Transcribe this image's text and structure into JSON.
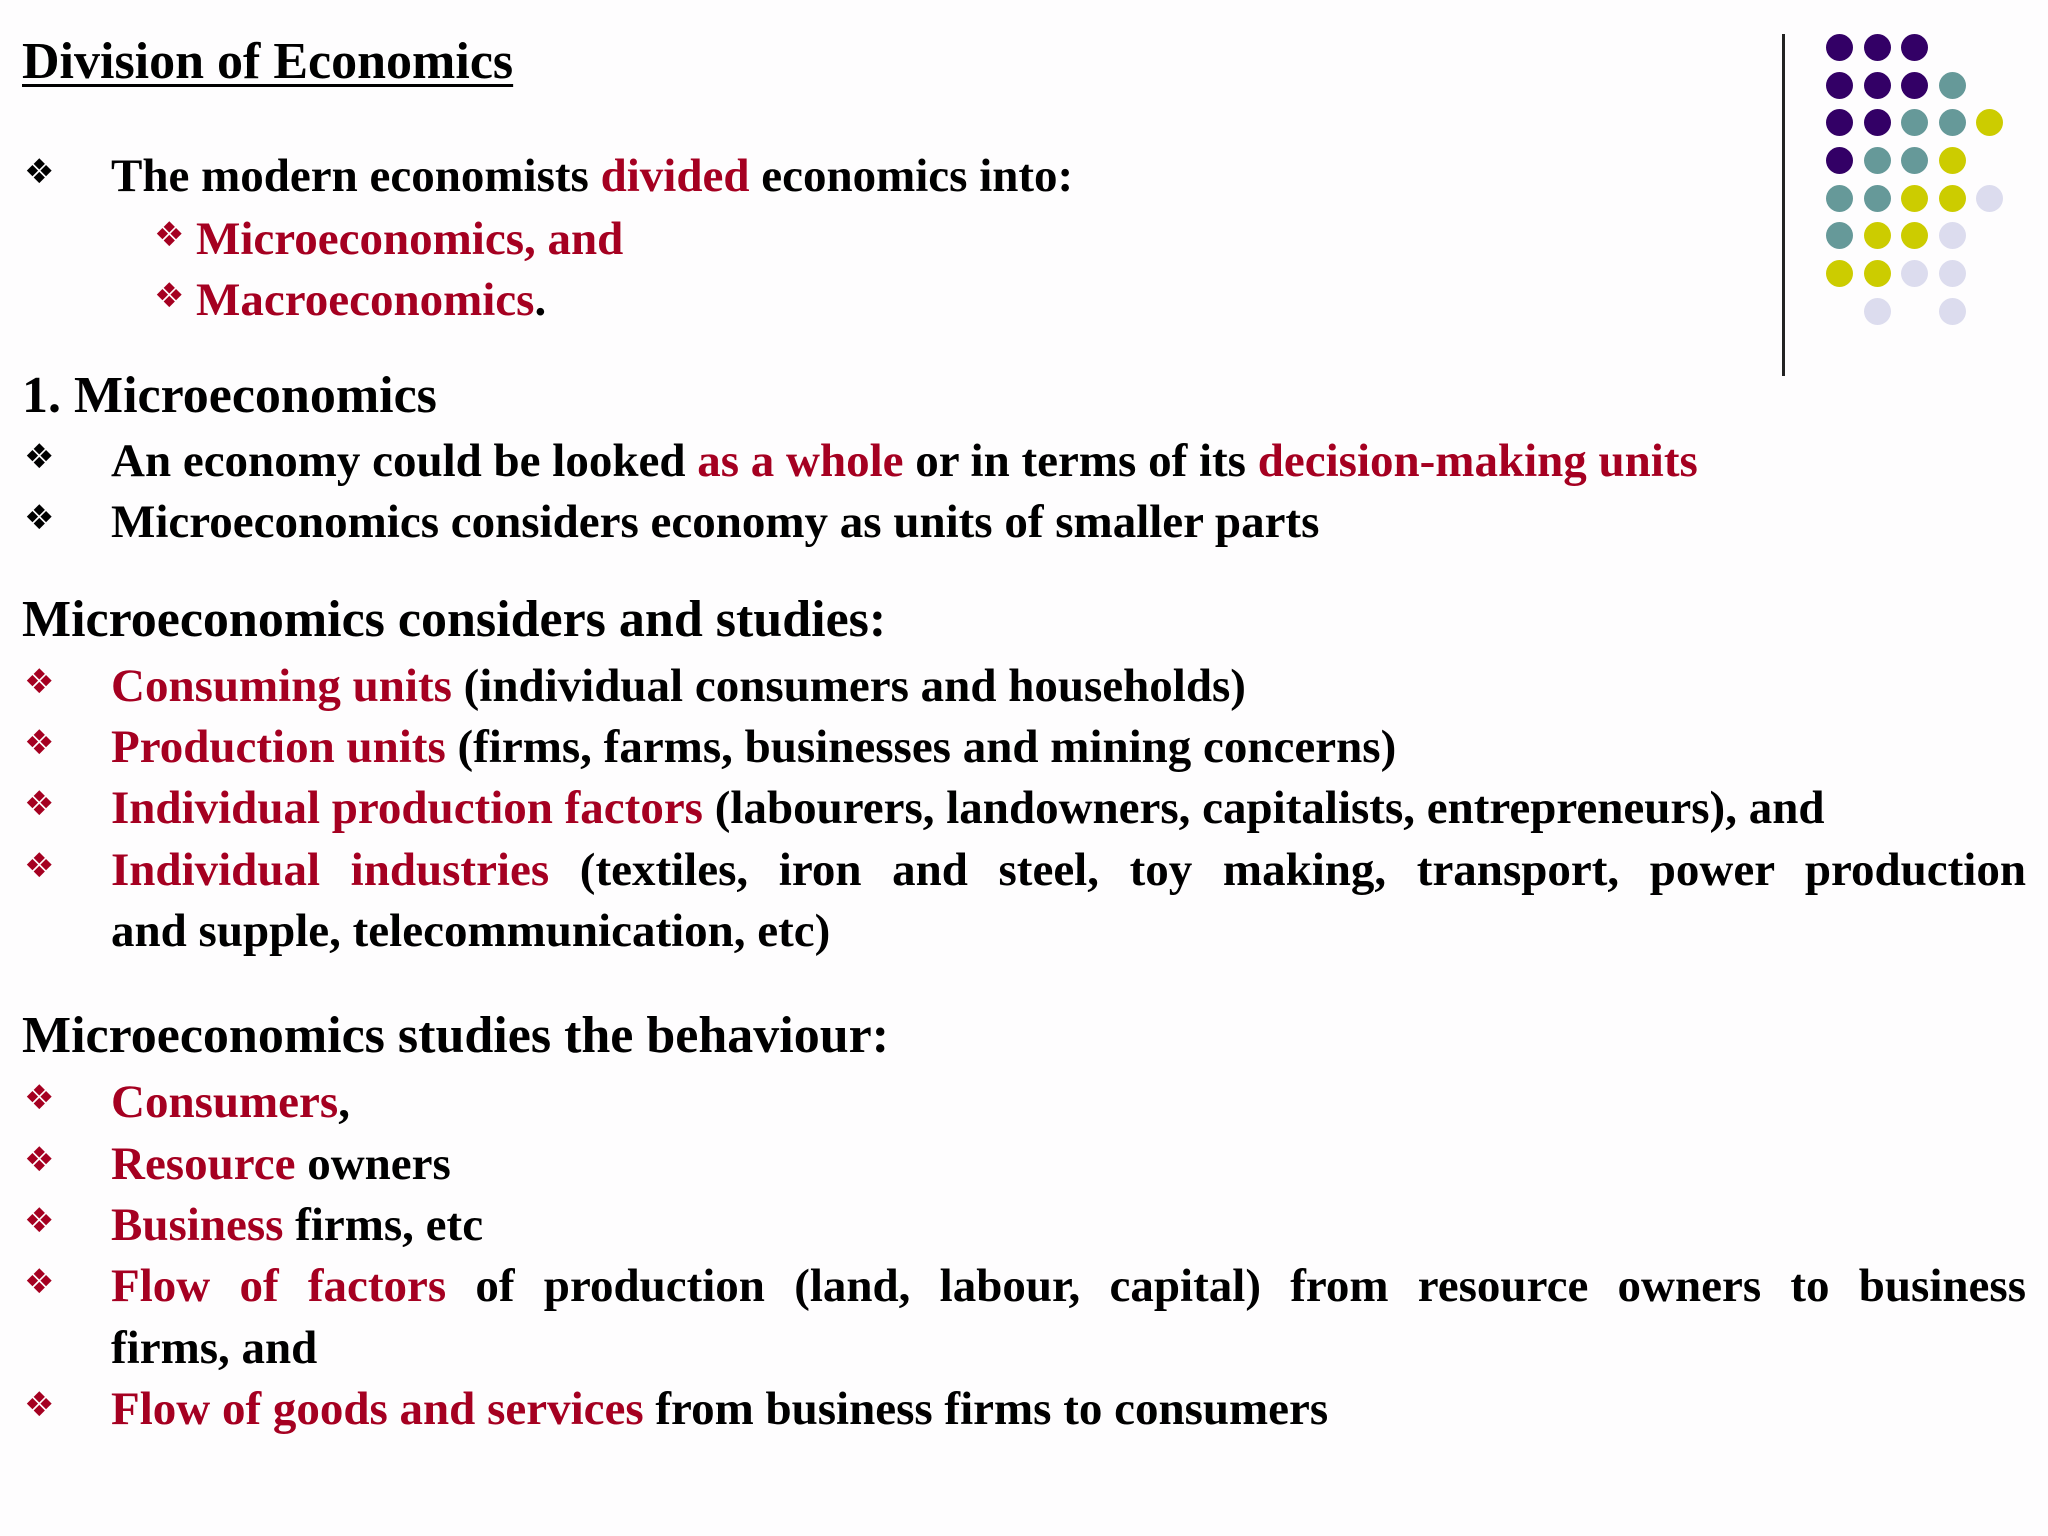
{
  "title": "Division of Economics",
  "bullet_glyph": "❖",
  "colors": {
    "accent_red": "#a50021",
    "purple": "#330066",
    "teal": "#669999",
    "yellow": "#cccc00",
    "lavender": "#dcdcee"
  },
  "lines": [
    {
      "bullet": "black",
      "segments": [
        {
          "t": "The modern economists "
        },
        {
          "t": "divided",
          "red": true
        },
        {
          "t": " economics into:"
        }
      ]
    },
    {
      "bullet": "red",
      "sub": true,
      "segments": [
        {
          "t": "Microeconomics, and",
          "red": true
        }
      ]
    },
    {
      "bullet": "red",
      "sub": true,
      "segments": [
        {
          "t": "Macroeconomics",
          "red": true
        },
        {
          "t": "."
        }
      ]
    },
    {
      "heading": true,
      "segments": [
        {
          "t": "1. Microeconomics"
        }
      ]
    },
    {
      "bullet": "black",
      "segments": [
        {
          "t": "An economy could be looked "
        },
        {
          "t": "as a whole",
          "red": true
        },
        {
          "t": " or in terms of its "
        },
        {
          "t": "decision-making units",
          "red": true
        }
      ]
    },
    {
      "bullet": "black",
      "segments": [
        {
          "t": "Microeconomics considers economy as units of smaller parts"
        }
      ]
    },
    {
      "heading": true,
      "segments": [
        {
          "t": "Microeconomics considers and studies:"
        }
      ]
    },
    {
      "bullet": "red",
      "segments": [
        {
          "t": "Consuming units",
          "red": true
        },
        {
          "t": " (individual consumers and households)"
        }
      ]
    },
    {
      "bullet": "red",
      "segments": [
        {
          "t": "Production units",
          "red": true
        },
        {
          "t": " (firms, farms, businesses and mining concerns)"
        }
      ]
    },
    {
      "bullet": "red",
      "segments": [
        {
          "t": "Individual production factors",
          "red": true
        },
        {
          "t": " (labourers, landowners, capitalists, entrepreneurs), and"
        }
      ]
    },
    {
      "bullet": "red",
      "justify": true,
      "segments": [
        {
          "t": "Individual industries",
          "red": true
        },
        {
          "t": " (textiles, iron and steel, toy making, transport, power production"
        }
      ]
    },
    {
      "segments": [
        {
          "t": "and supple, telecommunication, etc)"
        }
      ]
    },
    {
      "heading": true,
      "segments": [
        {
          "t": "Microeconomics studies the behaviour:"
        }
      ]
    },
    {
      "bullet": "red",
      "segments": [
        {
          "t": "Consumers",
          "red": true
        },
        {
          "t": ","
        }
      ]
    },
    {
      "bullet": "red",
      "segments": [
        {
          "t": "Resource",
          "red": true
        },
        {
          "t": " owners"
        }
      ]
    },
    {
      "bullet": "red",
      "segments": [
        {
          "t": "Business",
          "red": true
        },
        {
          "t": " firms, etc"
        }
      ]
    },
    {
      "bullet": "red",
      "justify": true,
      "segments": [
        {
          "t": "Flow of factors",
          "red": true
        },
        {
          "t": " of production (land, labour, capital) from resource owners to business"
        }
      ]
    },
    {
      "segments": [
        {
          "t": "firms, and"
        }
      ]
    },
    {
      "bullet": "red",
      "segments": [
        {
          "t": "Flow of goods and services",
          "red": true
        },
        {
          "t": " from business firms to consumers"
        }
      ]
    }
  ]
}
